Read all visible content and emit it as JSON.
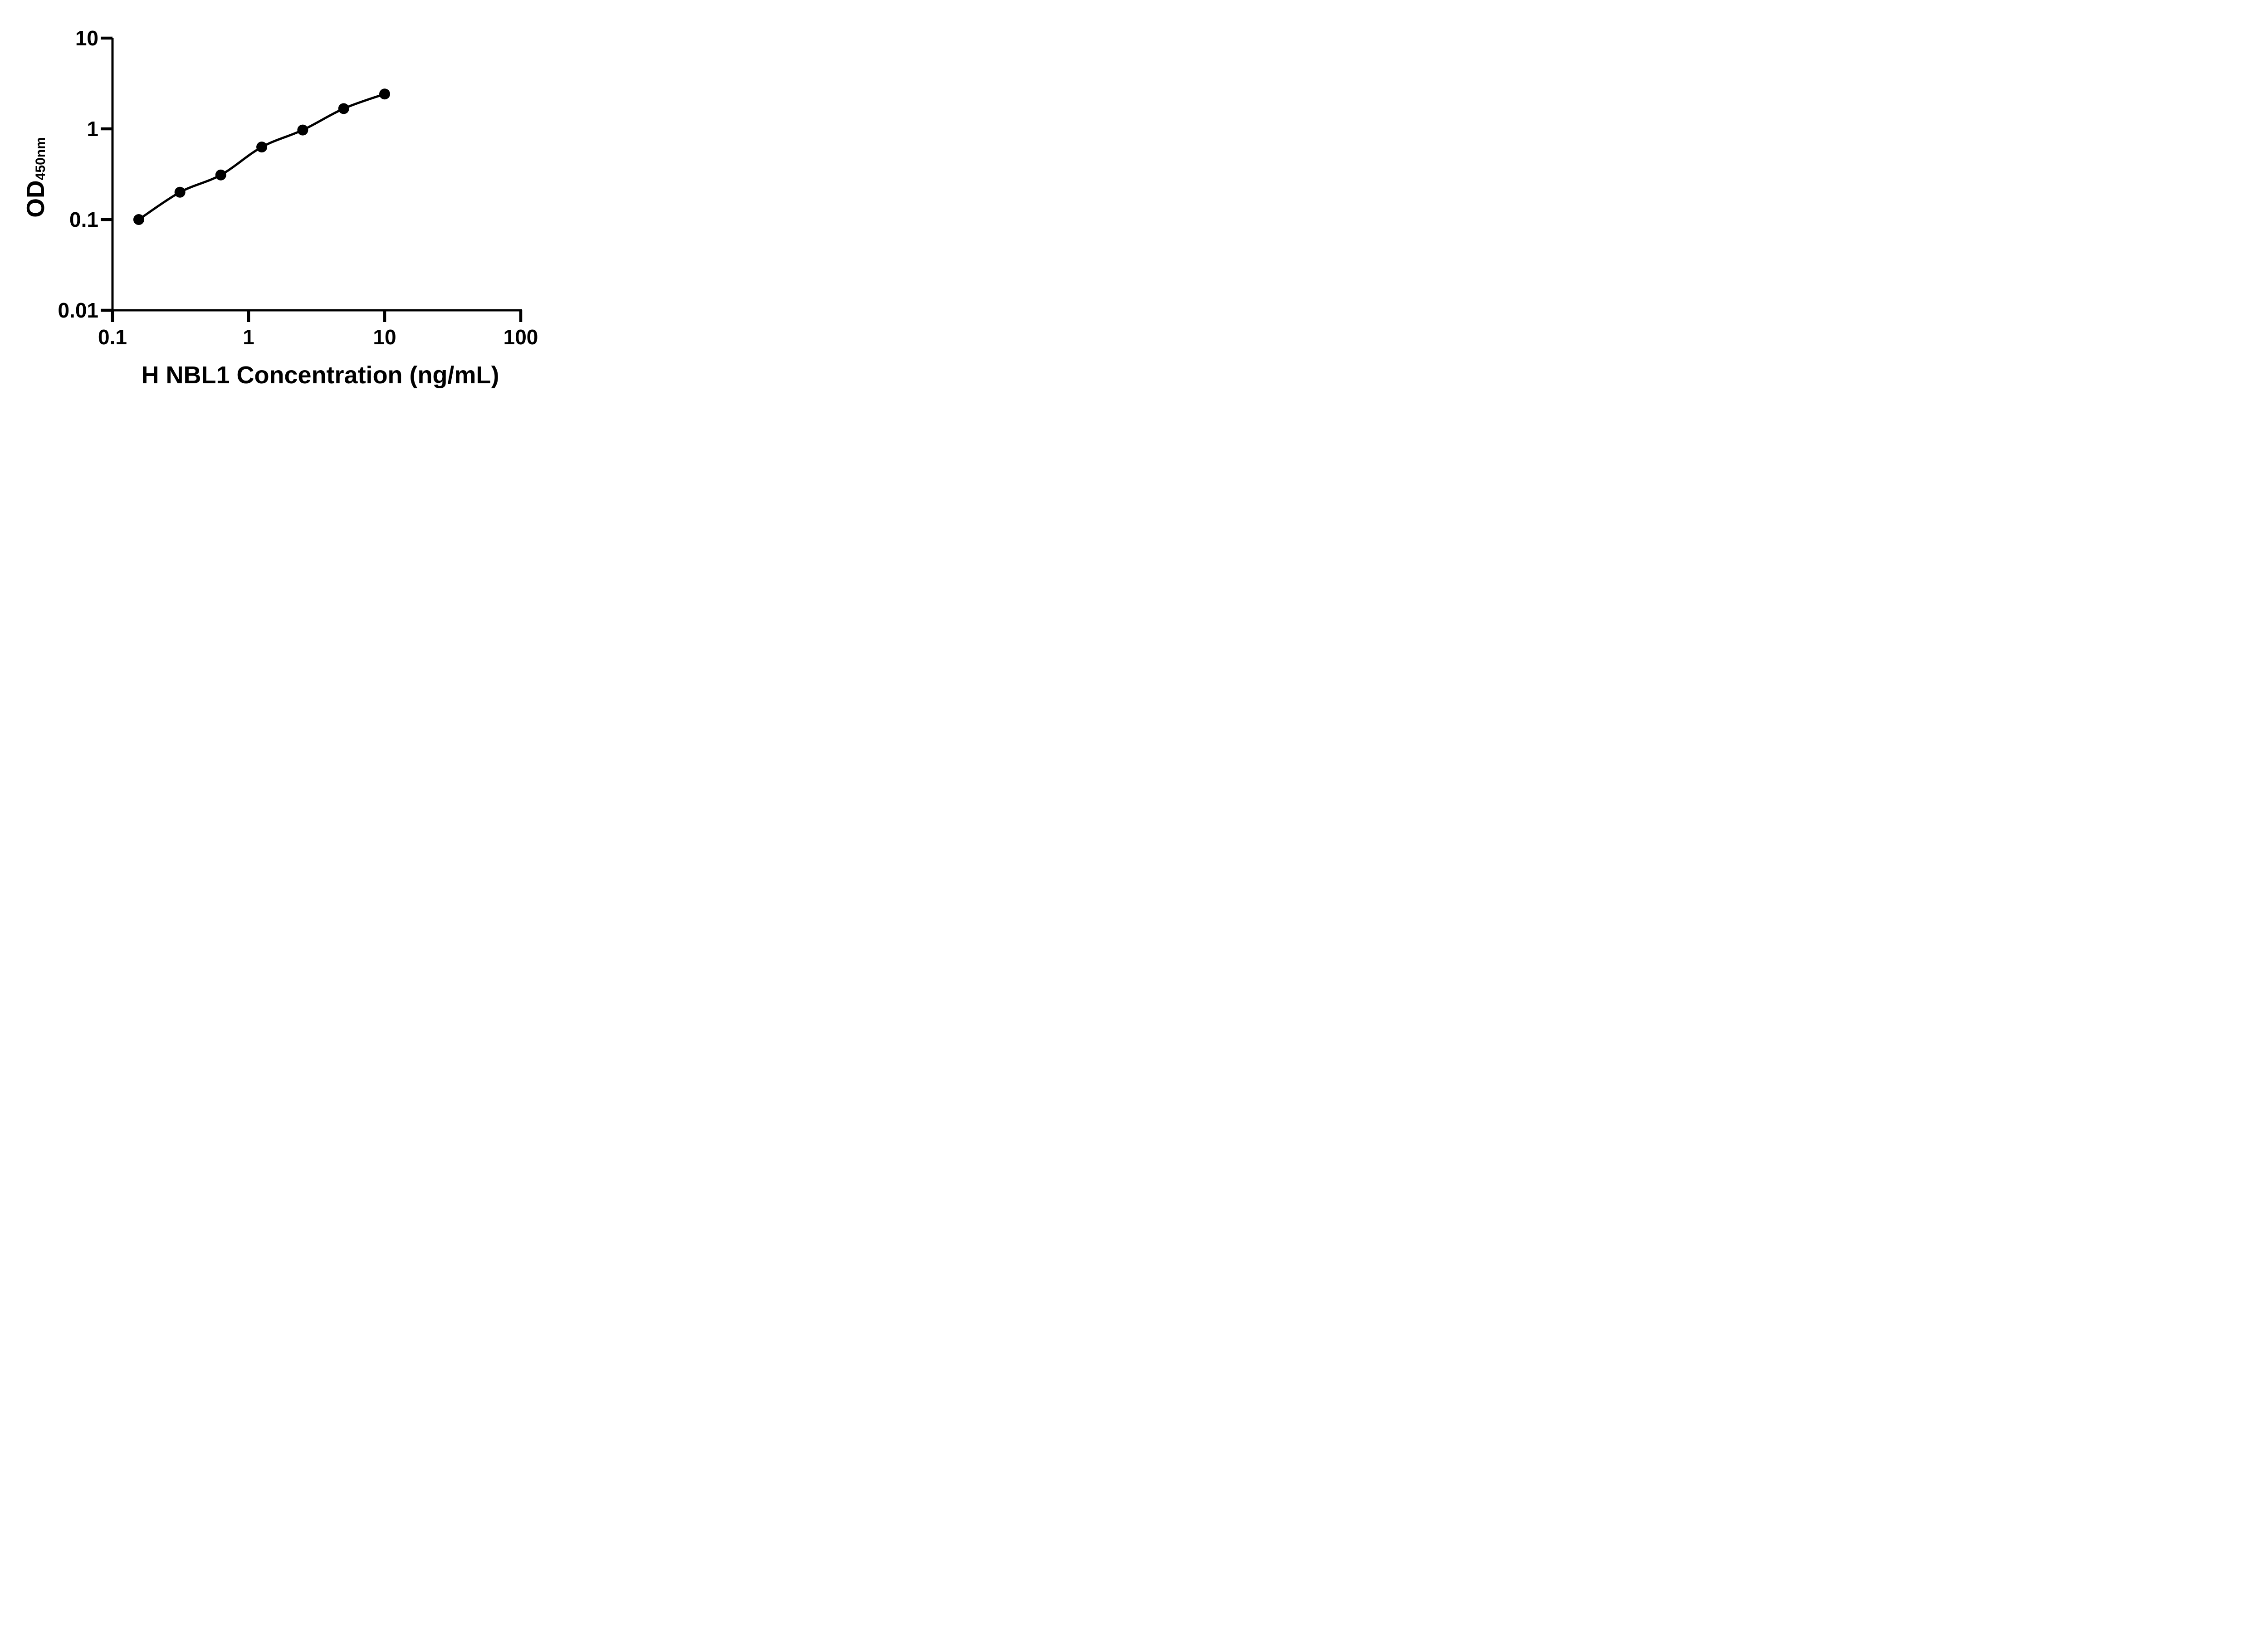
{
  "figure": {
    "background_color": "#ffffff",
    "ink_color": "#000000"
  },
  "chart_data": {
    "type": "line",
    "x_scale": "log",
    "y_scale": "log",
    "xlabel": "H NBL1 Concentration (ng/mL)",
    "ylabel_main": "OD",
    "ylabel_sub": "450nm",
    "xlim": [
      0.1,
      100
    ],
    "ylim": [
      0.01,
      10
    ],
    "grid": "off",
    "legend": "none",
    "marker": "filled-circle",
    "x": [
      0.156,
      0.313,
      0.625,
      1.25,
      2.5,
      5,
      10
    ],
    "y": [
      0.1,
      0.2,
      0.31,
      0.63,
      0.97,
      1.67,
      2.42
    ],
    "x_ticks": {
      "values": [
        0.1,
        1,
        10,
        100
      ],
      "labels": [
        "0.1",
        "1",
        "10",
        "100"
      ]
    },
    "y_ticks": {
      "values": [
        10,
        1,
        0.1,
        0.01
      ],
      "labels": [
        "10",
        "1",
        "0.1",
        "0.01"
      ]
    }
  }
}
